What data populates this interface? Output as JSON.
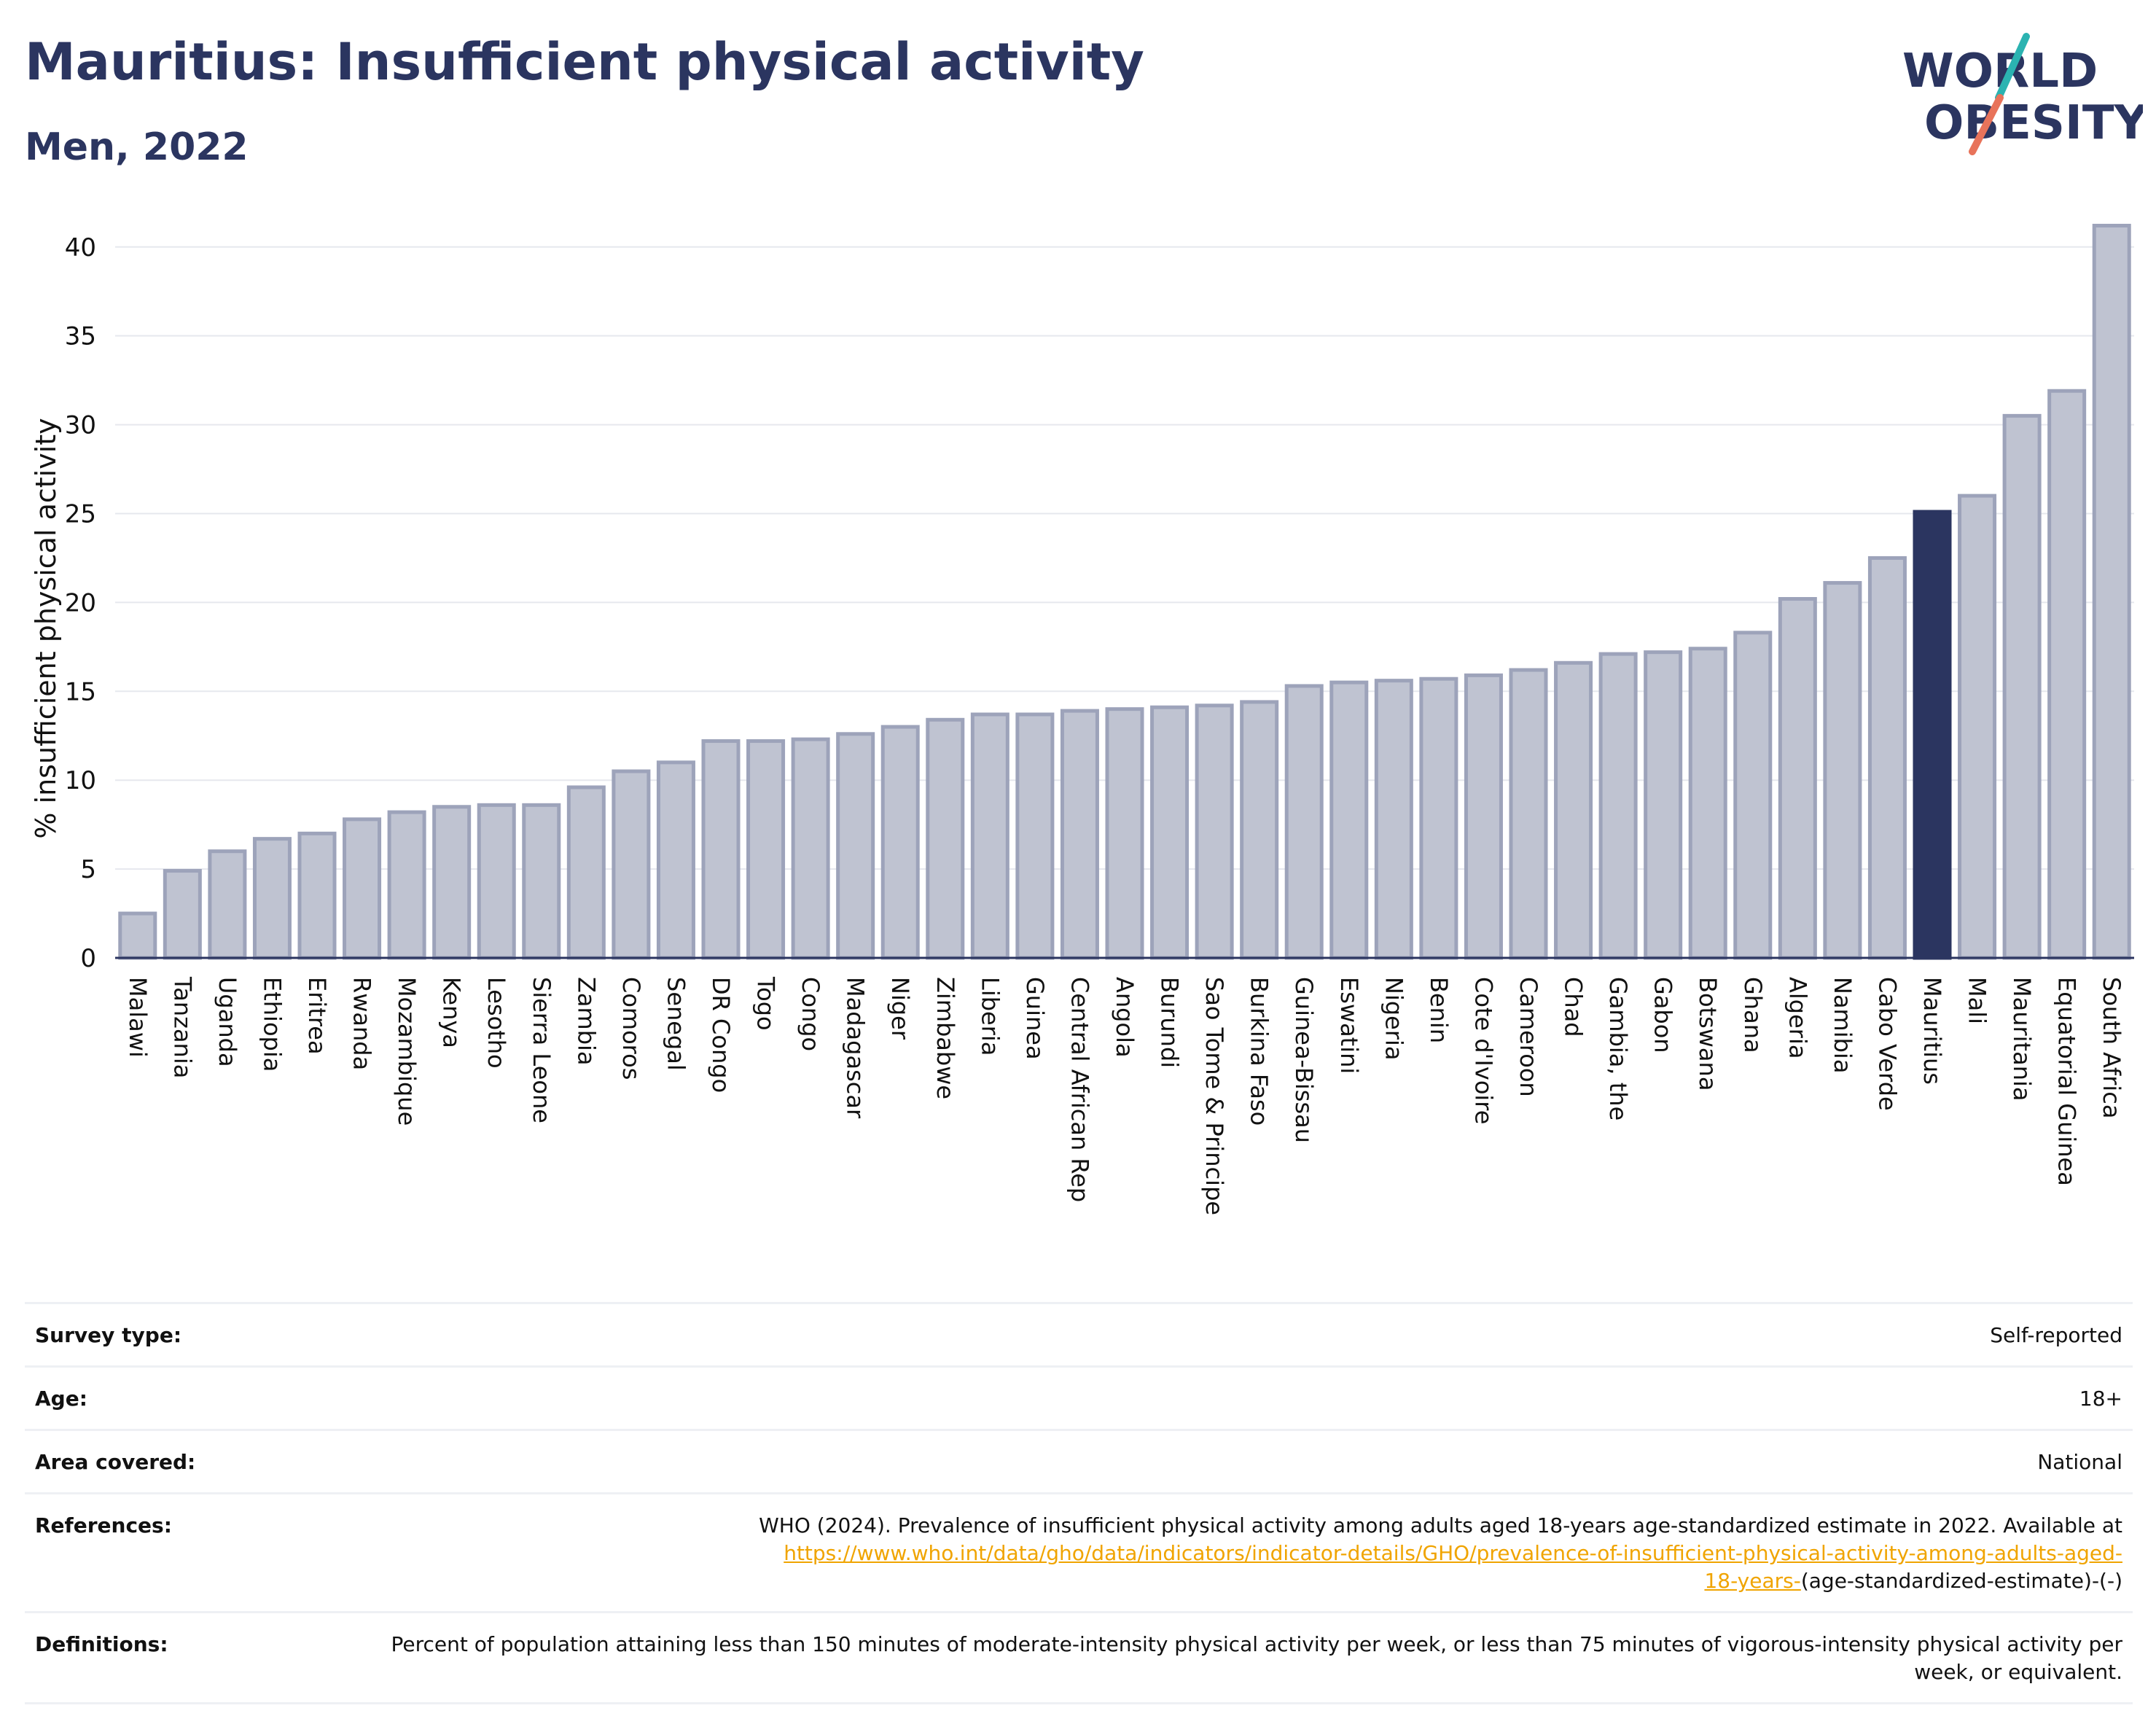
{
  "header": {
    "title": "Mauritius: Insufficient physical activity",
    "subtitle": "Men, 2022",
    "logo_line1": "WORLD",
    "logo_line2": "OBESITY"
  },
  "colors": {
    "bar": "#bfc3d1",
    "bar_stroke": "#9da3ba",
    "highlight": "#2b3560",
    "grid": "#e6e8ee",
    "logo_teal": "#2bb3b1",
    "logo_coral": "#e8735a"
  },
  "chart_data": {
    "type": "bar",
    "title": "Mauritius: Insufficient physical activity",
    "subtitle": "Men, 2022",
    "xlabel": "",
    "ylabel": "% insufficient physical activity",
    "ylim": [
      0,
      42
    ],
    "yticks": [
      0,
      5,
      10,
      15,
      20,
      25,
      30,
      35,
      40
    ],
    "grid": true,
    "highlight": "Mauritius",
    "categories": [
      "Malawi",
      "Tanzania",
      "Uganda",
      "Ethiopia",
      "Eritrea",
      "Rwanda",
      "Mozambique",
      "Kenya",
      "Lesotho",
      "Sierra Leone",
      "Zambia",
      "Comoros",
      "Senegal",
      "DR Congo",
      "Togo",
      "Congo",
      "Madagascar",
      "Niger",
      "Zimbabwe",
      "Liberia",
      "Guinea",
      "Central African Rep",
      "Angola",
      "Burundi",
      "Sao Tome & Principe",
      "Burkina Faso",
      "Guinea-Bissau",
      "Eswatini",
      "Nigeria",
      "Benin",
      "Cote d'Ivoire",
      "Cameroon",
      "Chad",
      "Gambia, the",
      "Gabon",
      "Botswana",
      "Ghana",
      "Algeria",
      "Namibia",
      "Cabo Verde",
      "Mauritius",
      "Mali",
      "Mauritania",
      "Equatorial Guinea",
      "South Africa"
    ],
    "values": [
      2.5,
      4.9,
      6.0,
      6.7,
      7.0,
      7.8,
      8.2,
      8.5,
      8.6,
      8.6,
      9.6,
      10.5,
      11.0,
      12.2,
      12.2,
      12.3,
      12.6,
      13.0,
      13.4,
      13.7,
      13.7,
      13.9,
      14.0,
      14.1,
      14.2,
      14.4,
      15.3,
      15.5,
      15.6,
      15.7,
      15.9,
      16.2,
      16.6,
      17.1,
      17.2,
      17.4,
      18.3,
      20.2,
      21.1,
      22.5,
      25.1,
      26.0,
      30.5,
      31.9,
      41.2
    ]
  },
  "info": {
    "survey_type_label": "Survey type:",
    "survey_type_value": "Self-reported",
    "age_label": "Age:",
    "age_value": "18+",
    "area_label": "Area covered:",
    "area_value": "National",
    "references_label": "References:",
    "references_text": "WHO (2024). Prevalence of insufficient physical activity among adults aged 18-years age-standardized estimate in 2022. Available at",
    "references_link_1": "https://www.who.int/data/gho/data/indicators/indicator-details/GHO/prevalence-of-insufficient-physical-activity-among-adults-aged-",
    "references_link_2": "18-years-",
    "references_suffix": "(age-standardized-estimate)-(-)",
    "definitions_label": "Definitions:",
    "definitions_text": "Percent of population attaining less than 150 minutes of moderate-intensity physical activity per week, or less than 75 minutes of vigorous-intensity physical activity per week, or equivalent."
  }
}
